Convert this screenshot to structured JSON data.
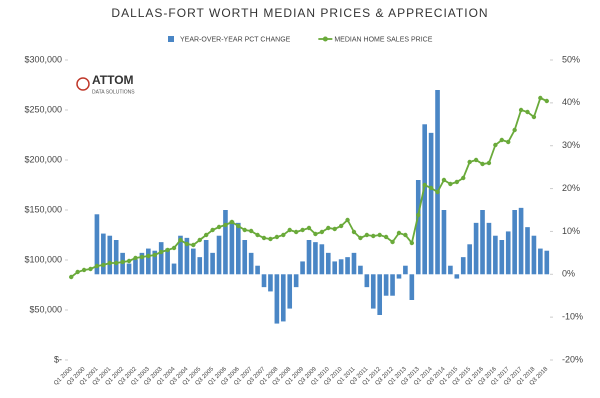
{
  "chart_data": {
    "type": "combo",
    "title": "DALLAS-FORT WORTH MEDIAN PRICES & APPRECIATION",
    "logo": {
      "name": "ATTOM",
      "tagline": "DATA SOLUTIONS"
    },
    "categories": [
      "Q1 2000",
      null,
      "Q3 2000",
      null,
      "Q1 2001",
      null,
      "Q3 2001",
      null,
      "Q1 2002",
      null,
      "Q3 2002",
      null,
      "Q1 2003",
      null,
      "Q3 2003",
      null,
      "Q1 2004",
      null,
      "Q3 2004",
      null,
      "Q1 2005",
      null,
      "Q3 2005",
      null,
      "Q1 2006",
      null,
      "Q3 2006",
      null,
      "Q1 2007",
      null,
      "Q3 2007",
      null,
      "Q1 2008",
      null,
      "Q3 2008",
      null,
      "Q1 2009",
      null,
      "Q3 2009",
      null,
      "Q1 2010",
      null,
      "Q3 2010",
      null,
      "Q1 2011",
      null,
      "Q3 2011",
      null,
      "Q1 2012",
      null,
      "Q3 2012",
      null,
      "Q1 2013",
      null,
      "Q3 2013",
      null,
      "Q1 2014",
      null,
      "Q3 2014",
      null,
      "Q1 2015",
      null,
      "Q3 2015",
      null,
      "Q1 2016",
      null,
      "Q3 2016",
      null,
      "Q1 2017",
      null,
      "Q3 2017",
      null,
      "Q1 2018",
      null,
      "Q3 2018"
    ],
    "series": [
      {
        "name": "YEAR-OVER-YEAR PCT CHANGE",
        "type": "bar",
        "axis": "y2",
        "color": "#4a86c5",
        "values": [
          null,
          null,
          null,
          null,
          14,
          9.5,
          9,
          8,
          5,
          2.5,
          3.5,
          5,
          6,
          5.5,
          7.5,
          6,
          2.5,
          9,
          8.5,
          6,
          4,
          8,
          5,
          9,
          15,
          12.5,
          12,
          8,
          5,
          2,
          -3,
          -4,
          -11.5,
          -11,
          -8,
          -3,
          3,
          8,
          7.5,
          7,
          5,
          3,
          3.5,
          4,
          5,
          2,
          -3,
          -8,
          -9.5,
          -5,
          -5,
          -1,
          2,
          -6,
          22,
          35,
          33,
          43,
          15,
          2,
          -1,
          4,
          7,
          12,
          15,
          12,
          9,
          8,
          10,
          15,
          15.5,
          11,
          9,
          6,
          5.5
        ]
      },
      {
        "name": "MEDIAN HOME SALES PRICE",
        "type": "line",
        "axis": "y",
        "color": "#6aaa3a",
        "values": [
          83000,
          88000,
          90000,
          91000,
          94000,
          95000,
          97000,
          97000,
          98000,
          99000,
          102000,
          103000,
          104000,
          105000,
          108000,
          110000,
          112000,
          120000,
          116000,
          115000,
          120000,
          125000,
          130000,
          133000,
          135000,
          138000,
          134000,
          130000,
          129000,
          125000,
          122000,
          121000,
          123000,
          125000,
          130000,
          128000,
          130000,
          132000,
          126000,
          128000,
          132000,
          131000,
          134000,
          140000,
          128000,
          122000,
          125000,
          124000,
          125000,
          123000,
          118000,
          127000,
          125000,
          117000,
          145000,
          175000,
          172000,
          168000,
          180000,
          176000,
          178000,
          182000,
          198000,
          200000,
          196000,
          197000,
          215000,
          220000,
          218000,
          230000,
          250000,
          248000,
          243000,
          262000,
          259000
        ]
      }
    ],
    "ylim": [
      0,
      300000
    ],
    "yticks": [
      {
        "value": 0,
        "label": "$-"
      },
      {
        "value": 50000,
        "label": "$50,000"
      },
      {
        "value": 100000,
        "label": "$100,000"
      },
      {
        "value": 150000,
        "label": "$150,000"
      },
      {
        "value": 200000,
        "label": "$200,000"
      },
      {
        "value": 250000,
        "label": "$250,000"
      },
      {
        "value": 300000,
        "label": "$300,000"
      }
    ],
    "y2lim": [
      -20,
      50
    ],
    "y2ticks": [
      {
        "value": -20,
        "label": "-20%"
      },
      {
        "value": -10,
        "label": "-10%"
      },
      {
        "value": 0,
        "label": "0%"
      },
      {
        "value": 10,
        "label": "10%"
      },
      {
        "value": 20,
        "label": "20%"
      },
      {
        "value": 30,
        "label": "30%"
      },
      {
        "value": 40,
        "label": "40%"
      },
      {
        "value": 50,
        "label": "50%"
      }
    ],
    "grid": false
  }
}
